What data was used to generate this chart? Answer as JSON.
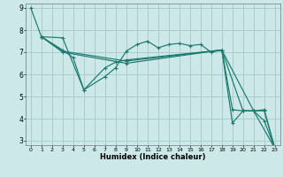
{
  "xlabel": "Humidex (Indice chaleur)",
  "xlim": [
    -0.5,
    23.5
  ],
  "ylim": [
    2.8,
    9.2
  ],
  "xticks": [
    0,
    1,
    2,
    3,
    4,
    5,
    6,
    7,
    8,
    9,
    10,
    11,
    12,
    13,
    14,
    15,
    16,
    17,
    18,
    19,
    20,
    21,
    22,
    23
  ],
  "yticks": [
    3,
    4,
    5,
    6,
    7,
    8,
    9
  ],
  "bg_color": "#cce8e8",
  "grid_color": "#a8cccc",
  "line_color": "#1a7a6e",
  "lines": [
    {
      "x": [
        0,
        1,
        3,
        5,
        7,
        8,
        9,
        10,
        11,
        12,
        13,
        14,
        15,
        16,
        17,
        18,
        19,
        20,
        21,
        22,
        23
      ],
      "y": [
        9.0,
        7.7,
        7.65,
        5.3,
        5.9,
        6.3,
        7.05,
        7.35,
        7.5,
        7.2,
        7.35,
        7.4,
        7.3,
        7.35,
        7.0,
        7.1,
        4.4,
        4.35,
        4.35,
        3.9,
        2.65
      ]
    },
    {
      "x": [
        1,
        3,
        4,
        5,
        7,
        8,
        9,
        18,
        19,
        20,
        21,
        22,
        23
      ],
      "y": [
        7.7,
        7.1,
        6.75,
        5.3,
        6.3,
        6.55,
        6.65,
        7.1,
        3.8,
        4.35,
        4.35,
        4.4,
        2.65
      ]
    },
    {
      "x": [
        1,
        3,
        9,
        18,
        21,
        23
      ],
      "y": [
        7.7,
        7.05,
        6.6,
        7.1,
        4.35,
        2.65
      ]
    },
    {
      "x": [
        1,
        3,
        9,
        18,
        20,
        22,
        23
      ],
      "y": [
        7.7,
        7.0,
        6.5,
        7.1,
        4.35,
        4.35,
        2.65
      ]
    }
  ]
}
